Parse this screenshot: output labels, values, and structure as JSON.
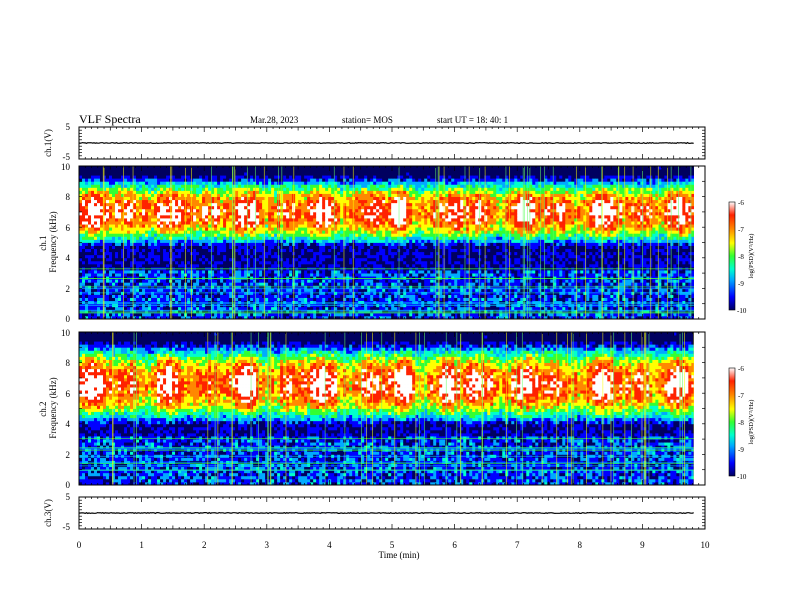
{
  "header": {
    "title": "VLF Spectra",
    "date": "Mar.28, 2023",
    "station": "station= MOS",
    "start_ut": "start  UT =   18: 40: 1"
  },
  "chart_data": [
    {
      "type": "line",
      "panel": "ch1-waveform",
      "ylabel": "ch.1(V)",
      "yticks": [
        "5",
        "-5"
      ],
      "ylim": [
        -5,
        5
      ],
      "trace_level": 0,
      "xlim": [
        0,
        10
      ]
    },
    {
      "type": "heatmap",
      "panel": "ch1-spectrogram",
      "ylabel": "ch.1\nFrequency (kHz)",
      "yticks": [
        "10",
        "8",
        "6",
        "4",
        "2",
        "0"
      ],
      "ylim": [
        0,
        10
      ],
      "xlim": [
        0,
        10
      ],
      "zlim": [
        -10,
        -6
      ],
      "colorbar_ticks": [
        "-6",
        "-7",
        "-8",
        "-9",
        "-10"
      ],
      "colorbar_label": "log(PSD)(V²/Hz)",
      "band_center_khz": 7.0,
      "band_halfwidth_khz": 2.2
    },
    {
      "type": "heatmap",
      "panel": "ch2-spectrogram",
      "ylabel": "ch.2\nFrequency (kHz)",
      "yticks": [
        "10",
        "8",
        "6",
        "4",
        "2",
        "0"
      ],
      "ylim": [
        0,
        10
      ],
      "xlim": [
        0,
        10
      ],
      "zlim": [
        -10,
        -6
      ],
      "colorbar_ticks": [
        "-6",
        "-7",
        "-8",
        "-9",
        "-10"
      ],
      "colorbar_label": "log(PSD)(V²/Hz)",
      "band_center_khz": 6.6,
      "band_halfwidth_khz": 2.6
    },
    {
      "type": "line",
      "panel": "ch3-waveform",
      "ylabel": "ch.3(V)",
      "yticks": [
        "5",
        "-5"
      ],
      "ylim": [
        -5,
        5
      ],
      "trace_level": 0,
      "xlim": [
        0,
        10
      ]
    }
  ],
  "x_axis": {
    "label": "Time (min)",
    "ticks": [
      "0",
      "1",
      "2",
      "3",
      "4",
      "5",
      "6",
      "7",
      "8",
      "9",
      "10"
    ]
  },
  "colormap": [
    "#000060",
    "#0000ff",
    "#00aaff",
    "#00ffcc",
    "#33ff33",
    "#ffff00",
    "#ff8800",
    "#ff2200",
    "#ffffff"
  ]
}
